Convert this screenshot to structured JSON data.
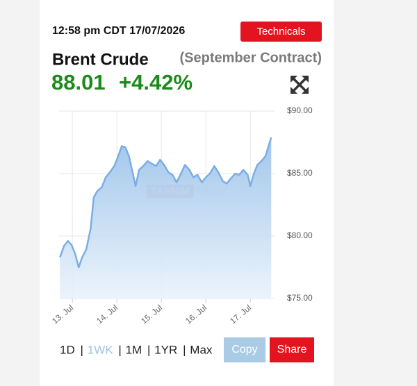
{
  "timestamp": "12:58 pm CDT 17/07/2026",
  "technicals_button": "Technicals",
  "instrument": "Brent Crude",
  "contract": "(September Contract)",
  "price": "88.01",
  "change": "+4.42%",
  "watermark": [
    "TASNIM",
    "NEWS"
  ],
  "chart_data": {
    "type": "area",
    "color": "#7aaee3",
    "x": [
      12.72,
      12.81,
      12.9,
      12.98,
      13.06,
      13.14,
      13.22,
      13.31,
      13.41,
      13.48,
      13.56,
      13.66,
      13.75,
      13.84,
      13.94,
      14.03,
      14.11,
      14.19,
      14.27,
      14.34,
      14.42,
      14.5,
      14.59,
      14.69,
      14.78,
      14.88,
      14.97,
      15.06,
      15.16,
      15.25,
      15.34,
      15.44,
      15.53,
      15.63,
      15.72,
      15.81,
      15.91,
      16.0,
      16.09,
      16.19,
      16.28,
      16.38,
      16.47,
      16.56,
      16.66,
      16.75,
      16.84,
      16.94,
      17.0,
      17.08,
      17.16,
      17.25,
      17.34,
      17.41,
      17.47
    ],
    "values": [
      78.3,
      79.2,
      79.6,
      79.3,
      78.6,
      77.5,
      78.3,
      78.9,
      80.6,
      83.1,
      83.6,
      83.9,
      84.7,
      85.1,
      85.6,
      86.4,
      87.2,
      87.1,
      86.4,
      85.3,
      84.0,
      85.3,
      85.6,
      86.0,
      85.8,
      85.6,
      86.1,
      85.7,
      85.1,
      84.9,
      84.3,
      85.0,
      85.7,
      85.3,
      84.7,
      84.9,
      84.3,
      84.7,
      85.0,
      85.6,
      85.1,
      84.4,
      84.2,
      84.6,
      85.0,
      84.9,
      85.3,
      84.9,
      84.0,
      85.0,
      85.7,
      86.0,
      86.4,
      87.2,
      87.9
    ],
    "xlim": [
      12.7,
      17.5
    ],
    "xticks": [
      {
        "value": 13,
        "label": "13. Jul"
      },
      {
        "value": 14,
        "label": "14. Jul"
      },
      {
        "value": 15,
        "label": "15. Jul"
      },
      {
        "value": 16,
        "label": "16. Jul"
      },
      {
        "value": 17,
        "label": "17. Jul"
      }
    ],
    "ylim": [
      75,
      90
    ],
    "yticks": [
      {
        "value": 75,
        "label": "$75.00"
      },
      {
        "value": 80,
        "label": "$80.00"
      },
      {
        "value": 85,
        "label": "$85.00"
      },
      {
        "value": 90,
        "label": "$90.00"
      }
    ],
    "grid": true
  },
  "range_buttons": [
    {
      "label": "1D",
      "active": false
    },
    {
      "label": "1WK",
      "active": true
    },
    {
      "label": "1M",
      "active": false
    },
    {
      "label": "1YR",
      "active": false
    },
    {
      "label": "Max",
      "active": false
    }
  ],
  "copy_button": "Copy",
  "share_button": "Share"
}
